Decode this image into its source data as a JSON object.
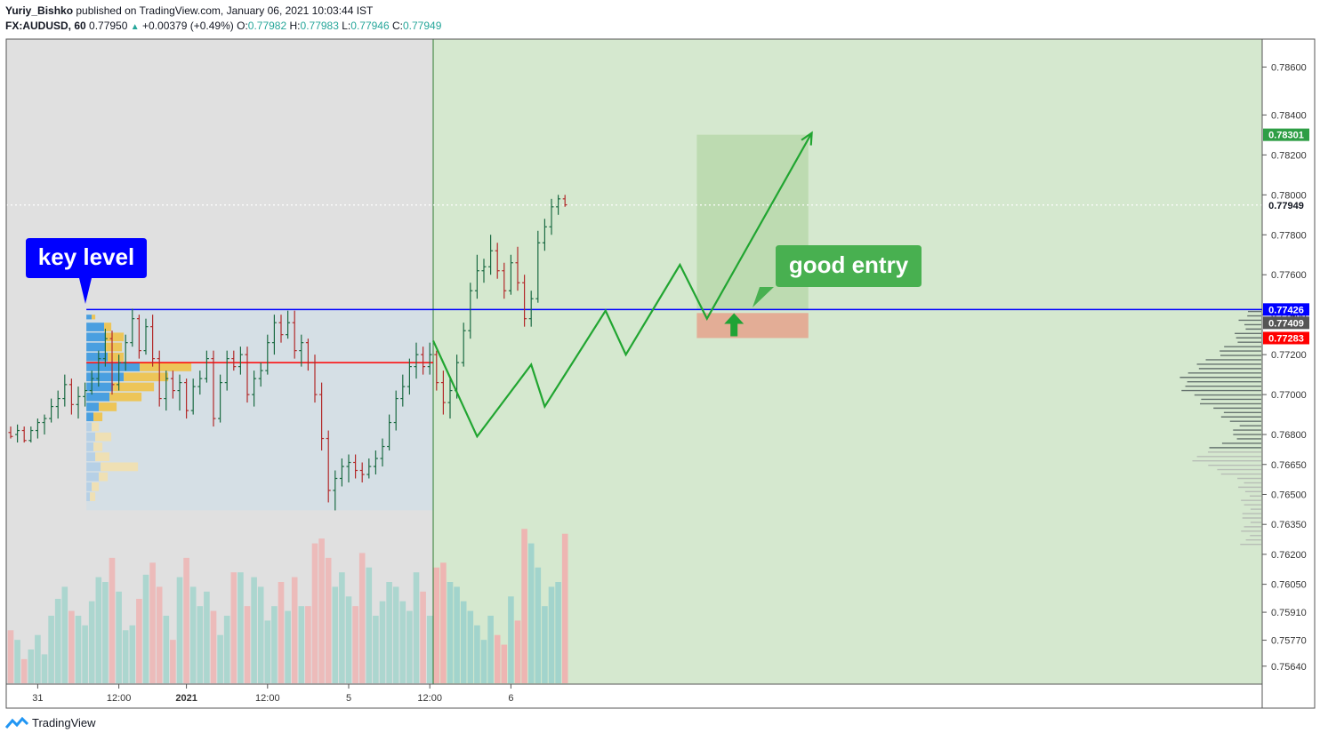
{
  "header": {
    "author": "Yuriy_Bishko",
    "published_text": "published on TradingView.com, January 06, 2021 10:03:44 IST",
    "symbol": "FX:AUDUSD, 60",
    "last": "0.77950",
    "change": "+0.00379 (+0.49%)",
    "o_label": "O:",
    "o": "0.77982",
    "h_label": "H:",
    "h": "0.77983",
    "l_label": "L:",
    "l": "0.77946",
    "c_label": "C:",
    "c": "0.77949"
  },
  "footer": {
    "brand": "TradingView"
  },
  "annotations": {
    "key_level": "key level",
    "good_entry": "good entry"
  },
  "colors": {
    "up": "#26a69a",
    "down": "#ef5350",
    "accent_blue": "#0000ff",
    "key_level_line": "#0000ff",
    "poc_line": "#ff0000",
    "projection": "#21a531",
    "target_box": "#34a853",
    "stop_box": "#e8a08a"
  },
  "chart_data": {
    "type": "candlestick",
    "symbol": "FX:AUDUSD",
    "timeframe": "60",
    "ylim": [
      0.7555,
      0.7878
    ],
    "y_ticks": [
      0.7864,
      0.784,
      0.782,
      0.78,
      0.778,
      0.776,
      0.774,
      0.772,
      0.77,
      0.768,
      0.7665,
      0.765,
      0.7635,
      0.762,
      0.7605,
      0.7591,
      0.7577,
      0.7564
    ],
    "y_tick_labels": [
      "0.78600",
      "0.78400",
      "0.78200",
      "0.78000",
      "0.77800",
      "0.77600",
      "0.77400",
      "0.77200",
      "0.77000",
      "0.76800",
      "0.76650",
      "0.76500",
      "0.76350",
      "0.76200",
      "0.76050",
      "0.75910",
      "0.75770",
      "0.75640"
    ],
    "x_ticks": [
      {
        "label": "31",
        "bar": 4
      },
      {
        "label": "12:00",
        "bar": 16
      },
      {
        "label": "2021",
        "bar": 26
      },
      {
        "label": "12:00",
        "bar": 38
      },
      {
        "label": "5",
        "bar": 50
      },
      {
        "label": "12:00",
        "bar": 62
      },
      {
        "label": "6",
        "bar": 74
      }
    ],
    "price_labels": [
      {
        "value": 0.78301,
        "text": "0.78301",
        "color": "#2e9e45"
      },
      {
        "value": 0.77949,
        "text": "0.77949",
        "color": "#ffffff"
      },
      {
        "value": 0.77426,
        "text": "0.77426",
        "color": "#0000ff"
      },
      {
        "value": 0.77409,
        "text": "0.77409",
        "color": "#555555"
      },
      {
        "value": 0.77283,
        "text": "0.77283",
        "color": "#ff0000"
      }
    ],
    "key_level": 0.77426,
    "poc_level": 0.7716,
    "last_price": 0.77949,
    "projection_path": [
      {
        "bar": 62.5,
        "price": 0.7727
      },
      {
        "bar": 69,
        "price": 0.7679
      },
      {
        "bar": 77,
        "price": 0.7715
      },
      {
        "bar": 79,
        "price": 0.7694
      },
      {
        "bar": 88,
        "price": 0.7742
      },
      {
        "bar": 91,
        "price": 0.772
      },
      {
        "bar": 99,
        "price": 0.7765
      },
      {
        "bar": 103,
        "price": 0.7738
      },
      {
        "bar": 118.5,
        "price": 0.7831
      }
    ],
    "trade_box": {
      "bar_start": 101.5,
      "bar_end": 118,
      "entry": 0.77426,
      "target": 0.78301,
      "stop": 0.77283
    },
    "candles": [
      {
        "o": 0.7681,
        "h": 0.7684,
        "l": 0.7678,
        "c": 0.7679
      },
      {
        "o": 0.768,
        "h": 0.7685,
        "l": 0.7676,
        "c": 0.7682
      },
      {
        "o": 0.7682,
        "h": 0.7684,
        "l": 0.7676,
        "c": 0.7677
      },
      {
        "o": 0.7677,
        "h": 0.7684,
        "l": 0.7676,
        "c": 0.7682
      },
      {
        "o": 0.7682,
        "h": 0.7688,
        "l": 0.7678,
        "c": 0.7686
      },
      {
        "o": 0.7686,
        "h": 0.769,
        "l": 0.768,
        "c": 0.7688
      },
      {
        "o": 0.7688,
        "h": 0.7698,
        "l": 0.7686,
        "c": 0.7694
      },
      {
        "o": 0.7694,
        "h": 0.7702,
        "l": 0.7688,
        "c": 0.7698
      },
      {
        "o": 0.7698,
        "h": 0.771,
        "l": 0.7694,
        "c": 0.7705
      },
      {
        "o": 0.7705,
        "h": 0.7708,
        "l": 0.769,
        "c": 0.7695
      },
      {
        "o": 0.7695,
        "h": 0.7704,
        "l": 0.7688,
        "c": 0.7699
      },
      {
        "o": 0.7699,
        "h": 0.7706,
        "l": 0.7694,
        "c": 0.7702
      },
      {
        "o": 0.7702,
        "h": 0.7712,
        "l": 0.77,
        "c": 0.7708
      },
      {
        "o": 0.7708,
        "h": 0.7722,
        "l": 0.7704,
        "c": 0.7718
      },
      {
        "o": 0.7718,
        "h": 0.7733,
        "l": 0.7714,
        "c": 0.7728
      },
      {
        "o": 0.7728,
        "h": 0.7732,
        "l": 0.77,
        "c": 0.7705
      },
      {
        "o": 0.7705,
        "h": 0.772,
        "l": 0.7702,
        "c": 0.7716
      },
      {
        "o": 0.7716,
        "h": 0.773,
        "l": 0.7712,
        "c": 0.7726
      },
      {
        "o": 0.7726,
        "h": 0.7743,
        "l": 0.7724,
        "c": 0.7738
      },
      {
        "o": 0.7738,
        "h": 0.774,
        "l": 0.7718,
        "c": 0.7722
      },
      {
        "o": 0.7722,
        "h": 0.7738,
        "l": 0.772,
        "c": 0.7734
      },
      {
        "o": 0.7734,
        "h": 0.774,
        "l": 0.7714,
        "c": 0.7718
      },
      {
        "o": 0.7718,
        "h": 0.7722,
        "l": 0.7694,
        "c": 0.7698
      },
      {
        "o": 0.7698,
        "h": 0.7712,
        "l": 0.7692,
        "c": 0.7708
      },
      {
        "o": 0.7708,
        "h": 0.7712,
        "l": 0.7698,
        "c": 0.7702
      },
      {
        "o": 0.7702,
        "h": 0.771,
        "l": 0.7692,
        "c": 0.7706
      },
      {
        "o": 0.7706,
        "h": 0.7708,
        "l": 0.7688,
        "c": 0.7692
      },
      {
        "o": 0.7692,
        "h": 0.7708,
        "l": 0.769,
        "c": 0.7704
      },
      {
        "o": 0.7704,
        "h": 0.7712,
        "l": 0.77,
        "c": 0.7708
      },
      {
        "o": 0.7708,
        "h": 0.7722,
        "l": 0.7706,
        "c": 0.7718
      },
      {
        "o": 0.7718,
        "h": 0.7722,
        "l": 0.7684,
        "c": 0.7688
      },
      {
        "o": 0.7688,
        "h": 0.771,
        "l": 0.7686,
        "c": 0.7706
      },
      {
        "o": 0.7706,
        "h": 0.7722,
        "l": 0.7702,
        "c": 0.7718
      },
      {
        "o": 0.7718,
        "h": 0.7722,
        "l": 0.7712,
        "c": 0.7714
      },
      {
        "o": 0.7714,
        "h": 0.7724,
        "l": 0.771,
        "c": 0.772
      },
      {
        "o": 0.772,
        "h": 0.7724,
        "l": 0.7696,
        "c": 0.77
      },
      {
        "o": 0.77,
        "h": 0.7712,
        "l": 0.7694,
        "c": 0.7708
      },
      {
        "o": 0.7708,
        "h": 0.7716,
        "l": 0.7704,
        "c": 0.7712
      },
      {
        "o": 0.7712,
        "h": 0.773,
        "l": 0.771,
        "c": 0.7726
      },
      {
        "o": 0.7726,
        "h": 0.774,
        "l": 0.772,
        "c": 0.7736
      },
      {
        "o": 0.7736,
        "h": 0.774,
        "l": 0.7726,
        "c": 0.773
      },
      {
        "o": 0.773,
        "h": 0.7742,
        "l": 0.7728,
        "c": 0.7736
      },
      {
        "o": 0.7736,
        "h": 0.7742,
        "l": 0.7718,
        "c": 0.7722
      },
      {
        "o": 0.7722,
        "h": 0.773,
        "l": 0.7714,
        "c": 0.7726
      },
      {
        "o": 0.7726,
        "h": 0.7728,
        "l": 0.7712,
        "c": 0.7716
      },
      {
        "o": 0.7716,
        "h": 0.772,
        "l": 0.7696,
        "c": 0.77
      },
      {
        "o": 0.77,
        "h": 0.7706,
        "l": 0.7672,
        "c": 0.7678
      },
      {
        "o": 0.7678,
        "h": 0.7682,
        "l": 0.7646,
        "c": 0.7652
      },
      {
        "o": 0.7652,
        "h": 0.7662,
        "l": 0.7642,
        "c": 0.7658
      },
      {
        "o": 0.7658,
        "h": 0.7668,
        "l": 0.7654,
        "c": 0.7664
      },
      {
        "o": 0.7664,
        "h": 0.767,
        "l": 0.7656,
        "c": 0.7666
      },
      {
        "o": 0.7666,
        "h": 0.767,
        "l": 0.7658,
        "c": 0.7662
      },
      {
        "o": 0.7662,
        "h": 0.7666,
        "l": 0.7656,
        "c": 0.766
      },
      {
        "o": 0.766,
        "h": 0.7668,
        "l": 0.7658,
        "c": 0.7664
      },
      {
        "o": 0.7664,
        "h": 0.7672,
        "l": 0.766,
        "c": 0.7668
      },
      {
        "o": 0.7668,
        "h": 0.7678,
        "l": 0.7664,
        "c": 0.7674
      },
      {
        "o": 0.7674,
        "h": 0.769,
        "l": 0.7672,
        "c": 0.7686
      },
      {
        "o": 0.7686,
        "h": 0.7702,
        "l": 0.7682,
        "c": 0.7698
      },
      {
        "o": 0.7698,
        "h": 0.771,
        "l": 0.7694,
        "c": 0.7704
      },
      {
        "o": 0.7704,
        "h": 0.7718,
        "l": 0.77,
        "c": 0.7714
      },
      {
        "o": 0.7714,
        "h": 0.7726,
        "l": 0.7708,
        "c": 0.772
      },
      {
        "o": 0.772,
        "h": 0.7724,
        "l": 0.771,
        "c": 0.7714
      },
      {
        "o": 0.7714,
        "h": 0.7726,
        "l": 0.771,
        "c": 0.772
      },
      {
        "o": 0.772,
        "h": 0.7722,
        "l": 0.7702,
        "c": 0.7706
      },
      {
        "o": 0.7706,
        "h": 0.7712,
        "l": 0.769,
        "c": 0.7696
      },
      {
        "o": 0.7696,
        "h": 0.7708,
        "l": 0.7688,
        "c": 0.7702
      },
      {
        "o": 0.7702,
        "h": 0.772,
        "l": 0.7698,
        "c": 0.7716
      },
      {
        "o": 0.7716,
        "h": 0.7736,
        "l": 0.7714,
        "c": 0.7732
      },
      {
        "o": 0.7732,
        "h": 0.7756,
        "l": 0.7728,
        "c": 0.7752
      },
      {
        "o": 0.7752,
        "h": 0.777,
        "l": 0.7748,
        "c": 0.7762
      },
      {
        "o": 0.7762,
        "h": 0.7768,
        "l": 0.7756,
        "c": 0.7764
      },
      {
        "o": 0.7764,
        "h": 0.778,
        "l": 0.776,
        "c": 0.7772
      },
      {
        "o": 0.7772,
        "h": 0.7776,
        "l": 0.7758,
        "c": 0.7762
      },
      {
        "o": 0.7762,
        "h": 0.7766,
        "l": 0.7748,
        "c": 0.7752
      },
      {
        "o": 0.7752,
        "h": 0.777,
        "l": 0.775,
        "c": 0.7766
      },
      {
        "o": 0.7766,
        "h": 0.7774,
        "l": 0.7752,
        "c": 0.7756
      },
      {
        "o": 0.7756,
        "h": 0.776,
        "l": 0.7734,
        "c": 0.7738
      },
      {
        "o": 0.7738,
        "h": 0.7752,
        "l": 0.7734,
        "c": 0.7748
      },
      {
        "o": 0.7748,
        "h": 0.7782,
        "l": 0.7746,
        "c": 0.7776
      },
      {
        "o": 0.7776,
        "h": 0.7788,
        "l": 0.7772,
        "c": 0.7784
      },
      {
        "o": 0.7784,
        "h": 0.7798,
        "l": 0.778,
        "c": 0.7794
      },
      {
        "o": 0.7794,
        "h": 0.78,
        "l": 0.779,
        "c": 0.7798
      },
      {
        "o": 0.7798,
        "h": 0.78,
        "l": 0.7794,
        "c": 0.7795
      }
    ],
    "volume": [
      22,
      18,
      10,
      14,
      20,
      12,
      28,
      35,
      40,
      30,
      28,
      24,
      34,
      44,
      42,
      52,
      38,
      22,
      24,
      35,
      45,
      50,
      40,
      28,
      18,
      44,
      52,
      40,
      32,
      38,
      30,
      20,
      28,
      46,
      46,
      32,
      44,
      40,
      26,
      32,
      42,
      30,
      44,
      32,
      32,
      58,
      60,
      52,
      40,
      46,
      36,
      32,
      54,
      48,
      28,
      34,
      42,
      40,
      34,
      30,
      46,
      38,
      28,
      48,
      50,
      42,
      40,
      34,
      30,
      24,
      18,
      28,
      20,
      16,
      36,
      26,
      64,
      58,
      48,
      32,
      40,
      42,
      62
    ]
  }
}
